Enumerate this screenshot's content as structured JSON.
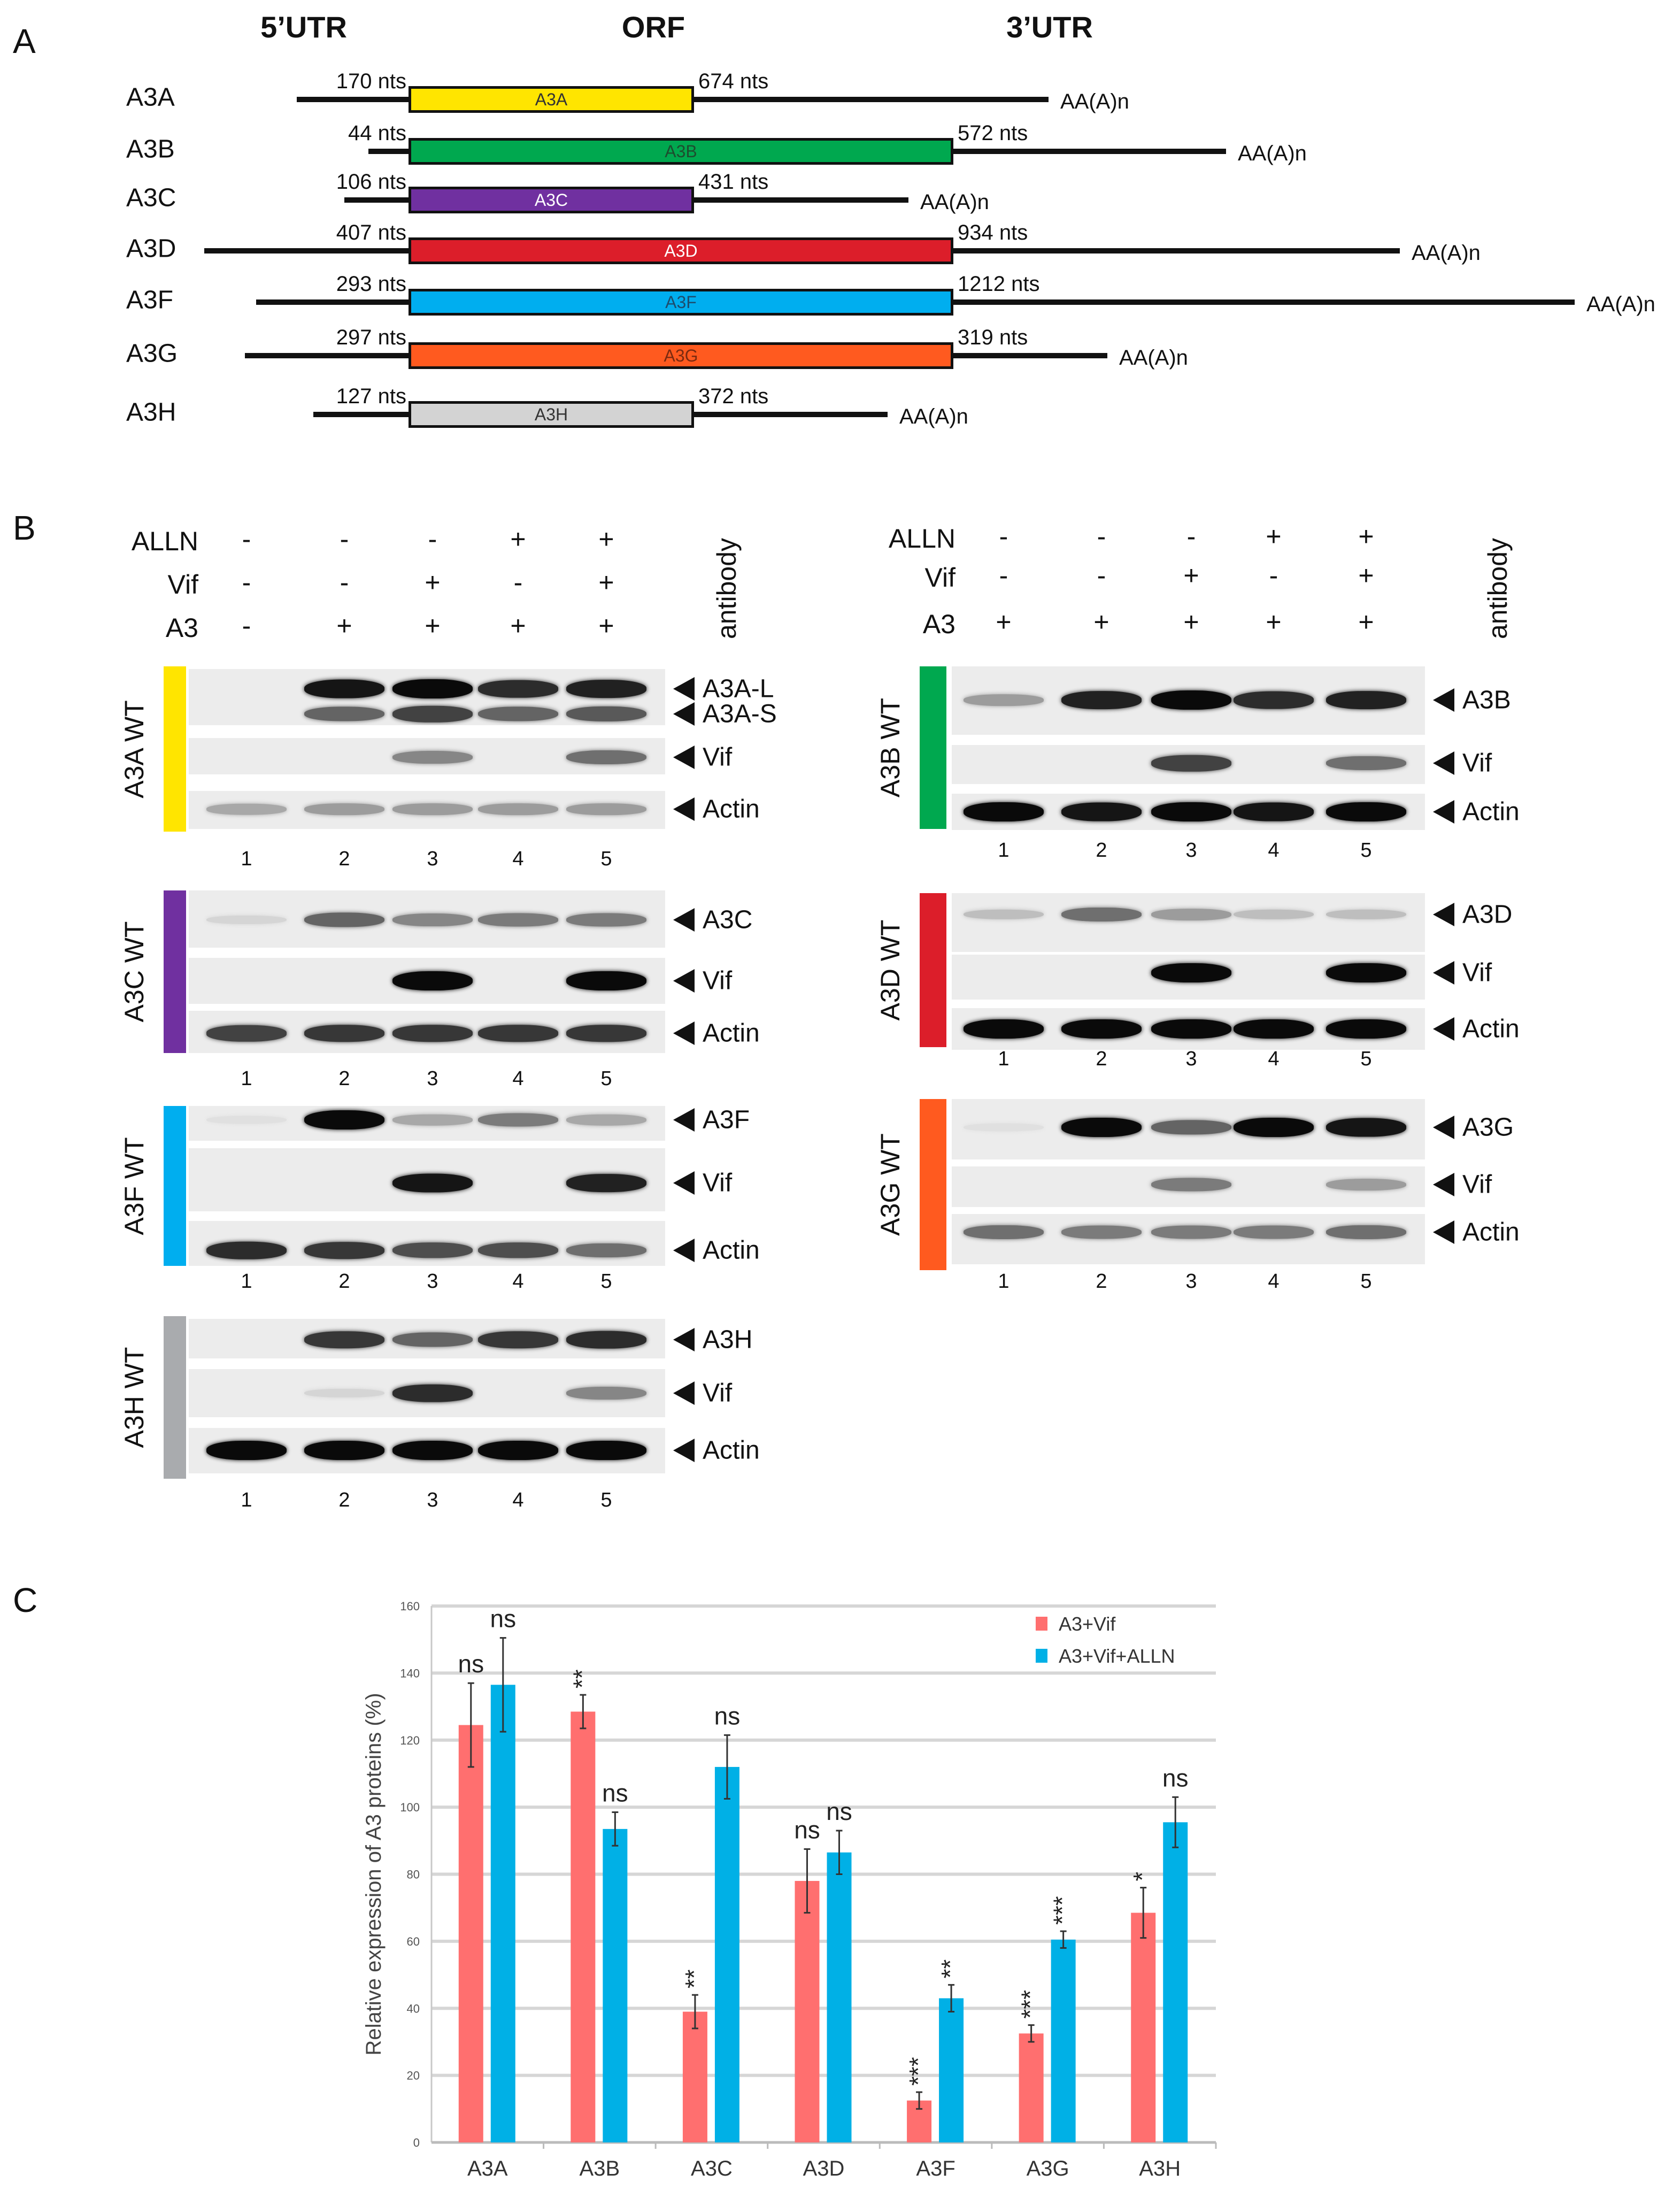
{
  "panel_labels": {
    "a": "A",
    "b": "B",
    "c": "C"
  },
  "panel_a": {
    "headers": {
      "utr5": "5’UTR",
      "orf": "ORF",
      "utr3": "3’UTR"
    },
    "polyA": "AA(A)n",
    "transcripts": [
      {
        "name": "A3A",
        "orf_label": "A3A",
        "utr5": "170 nts",
        "utr3": "674 nts",
        "color": "#FFE500",
        "text_color": "#333333"
      },
      {
        "name": "A3B",
        "orf_label": "A3B",
        "utr5": "44 nts",
        "utr3": "572 nts",
        "color": "#00A84F",
        "text_color": "#1d4d2e"
      },
      {
        "name": "A3C",
        "orf_label": "A3C",
        "utr5": "106 nts",
        "utr3": "431 nts",
        "color": "#7030A0",
        "text_color": "#ffffff"
      },
      {
        "name": "A3D",
        "orf_label": "A3D",
        "utr5": "407 nts",
        "utr3": "934 nts",
        "color": "#DC1E2A",
        "text_color": "#ffffff"
      },
      {
        "name": "A3F",
        "orf_label": "A3F",
        "utr5": "293 nts",
        "utr3": "1212 nts",
        "color": "#00AEEF",
        "text_color": "#1d4d6e"
      },
      {
        "name": "A3G",
        "orf_label": "A3G",
        "utr5": "297 nts",
        "utr3": "319 nts",
        "color": "#FF5A1F",
        "text_color": "#7a2a10"
      },
      {
        "name": "A3H",
        "orf_label": "A3H",
        "utr5": "127 nts",
        "utr3": "372 nts",
        "color": "#D3D3D3",
        "text_color": "#333333"
      }
    ]
  },
  "panel_b": {
    "antibody_label": "antibody",
    "left": {
      "conditions": [
        {
          "label": "ALLN",
          "values": [
            "-",
            "-",
            "-",
            "+",
            "+"
          ]
        },
        {
          "label": "Vif",
          "values": [
            "-",
            "-",
            "+",
            "-",
            "+"
          ]
        },
        {
          "label": "A3",
          "values": [
            "-",
            "+",
            "+",
            "+",
            "+"
          ]
        }
      ],
      "lanes": [
        "1",
        "2",
        "3",
        "4",
        "5"
      ],
      "blots": [
        {
          "name": "A3A WT",
          "color": "#FFE500",
          "rows": [
            {
              "antibody": "A3A-L",
              "intensity": [
                0,
                0.95,
                1,
                0.85,
                0.9
              ]
            },
            {
              "antibody": "A3A-S",
              "intensity": [
                0,
                0.6,
                0.75,
                0.6,
                0.65
              ]
            },
            {
              "antibody": "Vif",
              "intensity": [
                0,
                0,
                0.45,
                0,
                0.55
              ]
            },
            {
              "antibody": "Actin",
              "intensity": [
                0.3,
                0.35,
                0.35,
                0.35,
                0.35
              ]
            }
          ]
        },
        {
          "name": "A3C WT",
          "color": "#7030A0",
          "rows": [
            {
              "antibody": "A3C",
              "intensity": [
                0.1,
                0.6,
                0.45,
                0.5,
                0.5
              ]
            },
            {
              "antibody": "Vif",
              "intensity": [
                0,
                0,
                1,
                0,
                1
              ]
            },
            {
              "antibody": "Actin",
              "intensity": [
                0.75,
                0.8,
                0.8,
                0.8,
                0.8
              ]
            }
          ]
        },
        {
          "name": "A3F WT",
          "color": "#00AEEF",
          "rows": [
            {
              "antibody": "A3F",
              "intensity": [
                0.05,
                1,
                0.3,
                0.5,
                0.3
              ]
            },
            {
              "antibody": "Vif",
              "intensity": [
                0,
                0,
                0.95,
                0,
                0.9
              ]
            },
            {
              "antibody": "Actin",
              "intensity": [
                0.85,
                0.8,
                0.7,
                0.7,
                0.55
              ]
            }
          ]
        },
        {
          "name": "A3H WT",
          "color": "#A9ABAE",
          "rows": [
            {
              "antibody": "A3H",
              "intensity": [
                0,
                0.8,
                0.6,
                0.8,
                0.85
              ]
            },
            {
              "antibody": "Vif",
              "intensity": [
                0,
                0.1,
                0.85,
                0,
                0.45
              ]
            },
            {
              "antibody": "Actin",
              "intensity": [
                1,
                1,
                1,
                1,
                1
              ]
            }
          ]
        }
      ]
    },
    "right": {
      "conditions": [
        {
          "label": "ALLN",
          "values": [
            "-",
            "-",
            "-",
            "+",
            "+"
          ]
        },
        {
          "label": "Vif",
          "values": [
            "-",
            "-",
            "+",
            "-",
            "+"
          ]
        },
        {
          "label": "A3",
          "values": [
            "+",
            "+",
            "+",
            "+",
            "+"
          ]
        }
      ],
      "lanes": [
        "1",
        "2",
        "3",
        "4",
        "5"
      ],
      "blots": [
        {
          "name": "A3B WT",
          "color": "#00A84F",
          "rows": [
            {
              "antibody": "A3B",
              "intensity": [
                0.35,
                0.9,
                1,
                0.85,
                0.9
              ]
            },
            {
              "antibody": "Vif",
              "intensity": [
                0,
                0,
                0.75,
                0,
                0.55
              ]
            },
            {
              "antibody": "Actin",
              "intensity": [
                1,
                0.95,
                1,
                0.95,
                1
              ]
            }
          ]
        },
        {
          "name": "A3D WT",
          "color": "#DC1E2A",
          "rows": [
            {
              "antibody": "A3D",
              "intensity": [
                0.2,
                0.55,
                0.35,
                0.2,
                0.2
              ]
            },
            {
              "antibody": "Vif",
              "intensity": [
                0,
                0,
                1,
                0,
                1
              ]
            },
            {
              "antibody": "Actin",
              "intensity": [
                1,
                1,
                1,
                1,
                1
              ]
            }
          ]
        },
        {
          "name": "A3G WT",
          "color": "#FF5A1F",
          "rows": [
            {
              "antibody": "A3G",
              "intensity": [
                0.05,
                1,
                0.6,
                1,
                0.95
              ]
            },
            {
              "antibody": "Vif",
              "intensity": [
                0,
                0,
                0.5,
                0,
                0.35
              ]
            },
            {
              "antibody": "Actin",
              "intensity": [
                0.55,
                0.5,
                0.5,
                0.5,
                0.55
              ]
            }
          ]
        }
      ]
    }
  },
  "chart_data": {
    "type": "bar",
    "title": "",
    "xlabel": "",
    "ylabel": "Relative expression of A3 proteins (%)",
    "ylim": [
      0,
      160
    ],
    "yticks": [
      0,
      20,
      40,
      60,
      80,
      100,
      120,
      140,
      160
    ],
    "grid": true,
    "legend_position": "top-right",
    "categories": [
      "A3A",
      "A3B",
      "A3C",
      "A3D",
      "A3F",
      "A3G",
      "A3H"
    ],
    "series": [
      {
        "name": "A3+Vif",
        "color": "#FF6F6F",
        "values": [
          124.5,
          128.5,
          39,
          78,
          12.5,
          32.5,
          68.5
        ],
        "errors": [
          12.5,
          5,
          5,
          9.5,
          2.5,
          2.5,
          7.5
        ],
        "significance": [
          "ns",
          "**",
          "**",
          "ns",
          "***",
          "***",
          "*"
        ]
      },
      {
        "name": "A3+Vif+ALLN",
        "color": "#00B0E6",
        "values": [
          136.5,
          93.5,
          112,
          86.5,
          43,
          60.5,
          95.5
        ],
        "errors": [
          14,
          5,
          9.5,
          6.5,
          4,
          2.5,
          7.5
        ],
        "significance": [
          "ns",
          "ns",
          "ns",
          "ns",
          "**",
          "***",
          "ns"
        ]
      }
    ]
  }
}
